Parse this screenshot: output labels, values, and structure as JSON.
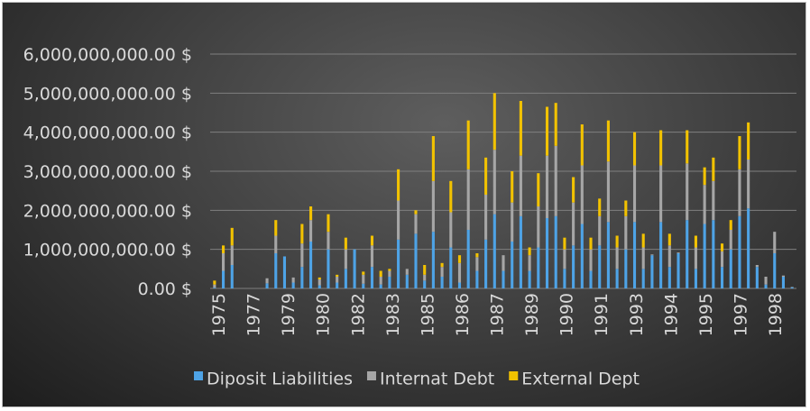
{
  "chart_data": {
    "type": "bar",
    "stacked": true,
    "title": "",
    "xlabel": "",
    "ylabel": "",
    "ylim": [
      0,
      6000000000
    ],
    "y_ticks": [
      "0.00 $",
      "1,000,000,000.00 $",
      "2,000,000,000.00 $",
      "3,000,000,000.00 $",
      "4,000,000,000.00 $",
      "5,000,000,000.00 $",
      "6,000,000,000.00 $"
    ],
    "x_tick_labels": [
      "1975",
      "1977",
      "1979",
      "1980",
      "1982",
      "1983",
      "1985",
      "1986",
      "1987",
      "1989",
      "1990",
      "1991",
      "1993",
      "1994",
      "1995",
      "1997",
      "1998"
    ],
    "grid": true,
    "legend_position": "bottom",
    "series": [
      {
        "name": "Diposit Liabilities",
        "color": "#4ea3e6",
        "values": [
          20000000,
          450000000,
          600000000,
          0,
          0,
          0,
          130000000,
          900000000,
          820000000,
          150000000,
          550000000,
          1200000000,
          80000000,
          1000000000,
          150000000,
          500000000,
          1000000000,
          120000000,
          550000000,
          100000000,
          300000000,
          1250000000,
          350000000,
          1400000000,
          200000000,
          1450000000,
          300000000,
          1050000000,
          150000000,
          1500000000,
          450000000,
          1250000000,
          1900000000,
          450000000,
          1200000000,
          1850000000,
          450000000,
          1050000000,
          1800000000,
          1850000000,
          500000000,
          1100000000,
          1650000000,
          450000000,
          1100000000,
          1700000000,
          500000000,
          1000000000,
          1700000000,
          500000000,
          850000000,
          1700000000,
          550000000,
          900000000,
          1750000000,
          500000000,
          1650000000,
          1750000000,
          550000000,
          1000000000,
          1850000000,
          2050000000,
          550000000,
          100000000,
          900000000,
          300000000,
          30000000
        ]
      },
      {
        "name": "Internat Debt",
        "color": "#a6a6a6",
        "values": [
          80000000,
          450000000,
          500000000,
          0,
          0,
          0,
          130000000,
          450000000,
          0,
          130000000,
          600000000,
          550000000,
          150000000,
          450000000,
          150000000,
          500000000,
          0,
          230000000,
          550000000,
          200000000,
          150000000,
          1000000000,
          150000000,
          500000000,
          150000000,
          1300000000,
          250000000,
          900000000,
          500000000,
          1550000000,
          350000000,
          1150000000,
          1650000000,
          400000000,
          1000000000,
          1550000000,
          400000000,
          1050000000,
          1600000000,
          1800000000,
          500000000,
          1100000000,
          1500000000,
          550000000,
          750000000,
          1550000000,
          550000000,
          850000000,
          1450000000,
          550000000,
          20000000,
          1450000000,
          550000000,
          20000000,
          1450000000,
          550000000,
          1000000000,
          1000000000,
          400000000,
          500000000,
          1200000000,
          1250000000,
          50000000,
          200000000,
          550000000,
          30000000,
          10000000
        ]
      },
      {
        "name": "External Dept",
        "color": "#f2c200",
        "values": [
          100000000,
          200000000,
          450000000,
          0,
          0,
          0,
          0,
          400000000,
          0,
          0,
          500000000,
          350000000,
          50000000,
          450000000,
          50000000,
          300000000,
          0,
          80000000,
          250000000,
          150000000,
          50000000,
          800000000,
          0,
          100000000,
          250000000,
          1150000000,
          100000000,
          800000000,
          200000000,
          1250000000,
          100000000,
          950000000,
          1450000000,
          0,
          800000000,
          1400000000,
          200000000,
          850000000,
          1250000000,
          1100000000,
          300000000,
          650000000,
          1050000000,
          300000000,
          450000000,
          1050000000,
          300000000,
          400000000,
          850000000,
          350000000,
          0,
          900000000,
          300000000,
          0,
          850000000,
          300000000,
          450000000,
          600000000,
          200000000,
          250000000,
          850000000,
          950000000,
          0,
          0,
          0,
          0,
          0
        ]
      }
    ]
  }
}
